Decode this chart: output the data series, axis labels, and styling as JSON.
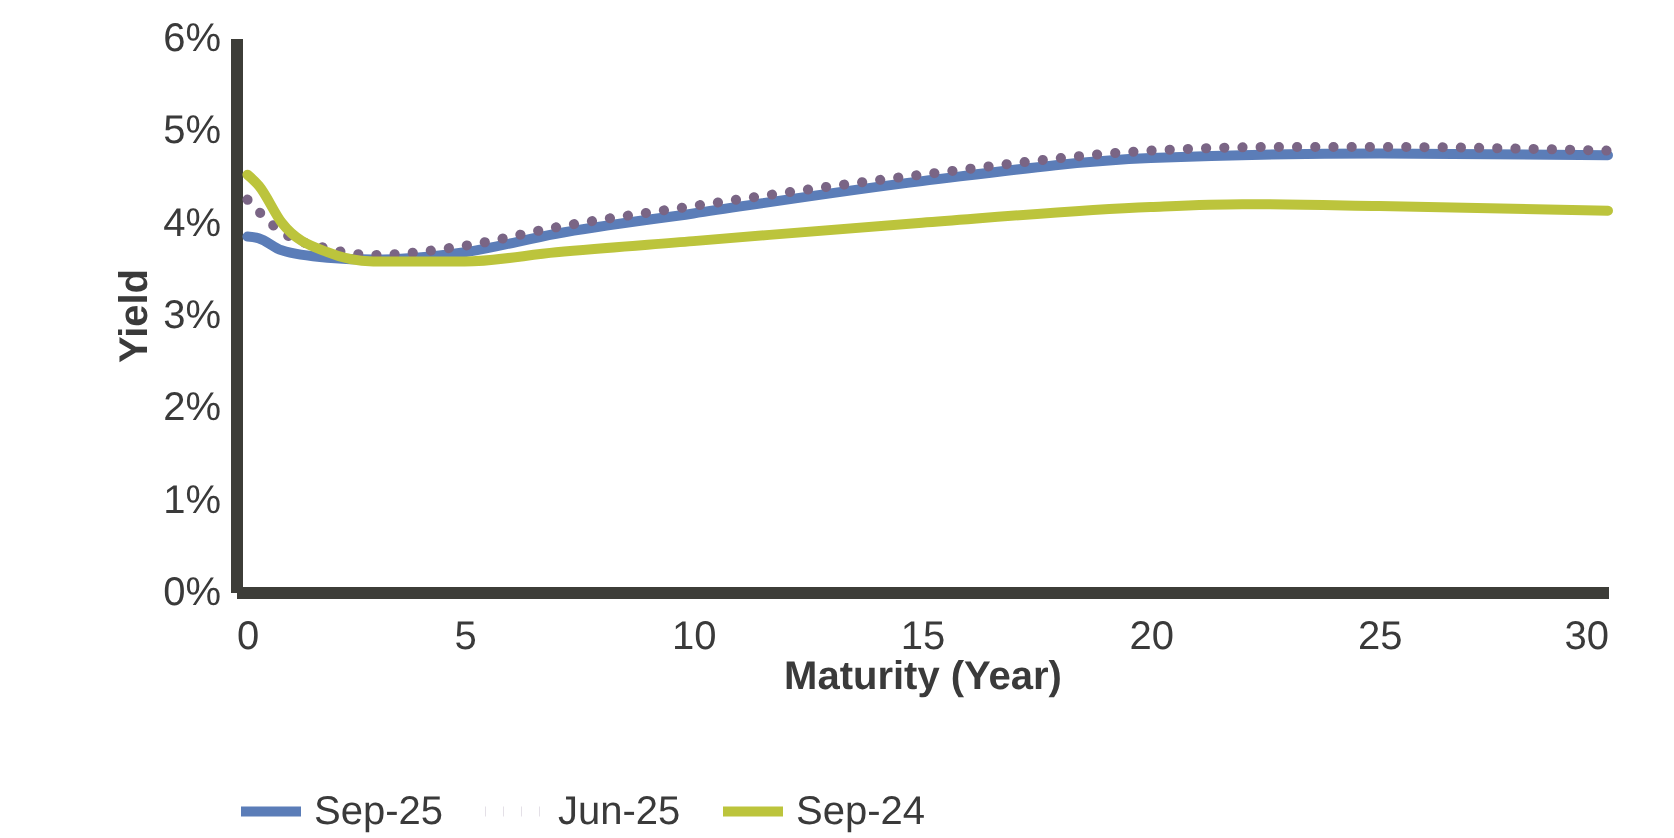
{
  "chart_data": {
    "type": "line",
    "xlabel": "Maturity (Year)",
    "ylabel": "Yield",
    "xlim": [
      0,
      30
    ],
    "xticks": [
      0,
      5,
      10,
      15,
      20,
      25,
      30
    ],
    "ylim": [
      0,
      6
    ],
    "yticks": [
      {
        "value": 0,
        "label": "0%"
      },
      {
        "value": 1,
        "label": "1%"
      },
      {
        "value": 2,
        "label": "2%"
      },
      {
        "value": 3,
        "label": "3%"
      },
      {
        "value": 4,
        "label": "4%"
      },
      {
        "value": 5,
        "label": "5%"
      },
      {
        "value": 6,
        "label": "6%"
      }
    ],
    "grid": false,
    "legend": "bottom",
    "marker": "none",
    "series": [
      {
        "name": "Sep-25",
        "color": "#5b7db8",
        "line_style": "solid",
        "x": [
          0.25,
          0.5,
          1,
          2,
          3,
          5,
          7,
          10,
          15,
          20,
          25,
          30
        ],
        "values": [
          3.85,
          3.83,
          3.7,
          3.62,
          3.6,
          3.68,
          3.88,
          4.1,
          4.45,
          4.7,
          4.75,
          4.73
        ]
      },
      {
        "name": "Jun-25",
        "color": "#7a6585",
        "line_style": "dotted",
        "x": [
          0.25,
          1,
          2,
          3,
          5,
          7,
          10,
          15,
          20,
          23,
          25,
          30
        ],
        "values": [
          4.25,
          3.9,
          3.72,
          3.65,
          3.75,
          3.95,
          4.18,
          4.52,
          4.78,
          4.82,
          4.82,
          4.78
        ]
      },
      {
        "name": "Sep-24",
        "color": "#bcc43c",
        "line_style": "solid",
        "x": [
          0.25,
          0.5,
          1,
          2,
          3,
          5,
          7,
          10,
          15,
          20,
          22,
          25,
          30
        ],
        "values": [
          4.52,
          4.4,
          4.0,
          3.68,
          3.58,
          3.58,
          3.68,
          3.8,
          4.0,
          4.17,
          4.2,
          4.18,
          4.13
        ]
      }
    ]
  }
}
